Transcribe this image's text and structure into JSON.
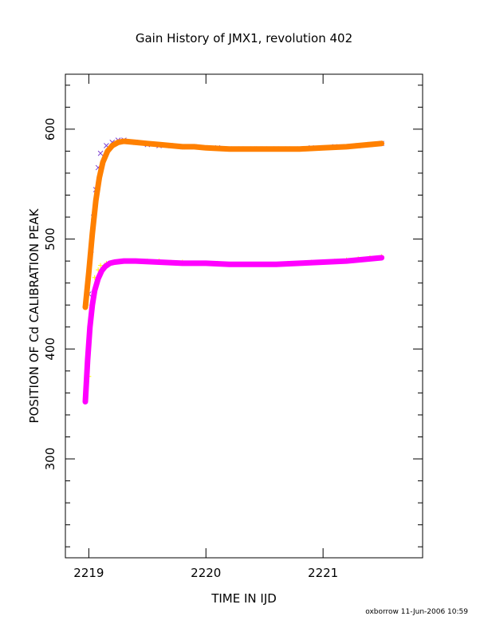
{
  "chart_data": {
    "type": "scatter",
    "title": "Gain History of JMX1, revolution 402",
    "xlabel": "TIME IN IJD",
    "ylabel": "POSITION OF Cd CALIBRATION PEAK",
    "xlim": [
      2218.8,
      2221.85
    ],
    "ylim": [
      210,
      650
    ],
    "x_ticks": [
      2219,
      2220,
      2221
    ],
    "y_ticks": [
      300,
      400,
      500,
      600
    ],
    "grid": false,
    "series": [
      {
        "name": "",
        "kind": "scatter",
        "marker": "x",
        "color": "#7b3fd0",
        "x": [
          2219.0,
          2219.02,
          2219.04,
          2219.06,
          2219.08,
          2219.1,
          2219.15,
          2219.2,
          2219.25,
          2219.3,
          2219.4,
          2219.5,
          2219.6,
          2219.7,
          2219.8,
          2219.9,
          2220.0,
          2220.1,
          2220.2,
          2220.3,
          2220.4,
          2220.45,
          2220.5,
          2220.6,
          2220.7,
          2220.8,
          2220.9,
          2221.0,
          2221.1,
          2221.2,
          2221.3,
          2221.4,
          2221.5
        ],
        "y": [
          450,
          490,
          520,
          545,
          565,
          578,
          585,
          588,
          590,
          590,
          588,
          586,
          585,
          585,
          584,
          584,
          583,
          583,
          582,
          582,
          582,
          582,
          582,
          582,
          582,
          582,
          583,
          583,
          584,
          584,
          585,
          586,
          587
        ]
      },
      {
        "name": "",
        "kind": "line",
        "marker": "+",
        "color": "#ff8000",
        "x": [
          2218.97,
          2219.0,
          2219.03,
          2219.06,
          2219.09,
          2219.12,
          2219.16,
          2219.2,
          2219.25,
          2219.3,
          2219.4,
          2219.5,
          2219.6,
          2219.7,
          2219.8,
          2219.9,
          2220.0,
          2220.2,
          2220.4,
          2220.6,
          2220.8,
          2221.0,
          2221.2,
          2221.4,
          2221.5
        ],
        "y": [
          438,
          470,
          505,
          535,
          556,
          570,
          580,
          585,
          588,
          589,
          588,
          587,
          586,
          585,
          584,
          584,
          583,
          582,
          582,
          582,
          582,
          583,
          584,
          586,
          587
        ]
      },
      {
        "name": "",
        "kind": "scatter",
        "marker": "+",
        "color": "#ffff00",
        "x": [
          2219.0,
          2219.02,
          2219.05,
          2219.08,
          2219.1,
          2219.15,
          2219.2,
          2219.3,
          2219.4,
          2219.5,
          2219.6,
          2219.7,
          2219.8,
          2219.9,
          2220.0,
          2220.1,
          2220.2,
          2220.3,
          2220.4,
          2220.5,
          2220.6,
          2220.7,
          2220.8,
          2220.9,
          2221.0,
          2221.1,
          2221.2,
          2221.3,
          2221.4,
          2221.5
        ],
        "y": [
          375,
          440,
          465,
          472,
          476,
          478,
          479,
          480,
          480,
          480,
          480,
          479,
          479,
          478,
          478,
          478,
          477,
          477,
          477,
          477,
          477,
          478,
          478,
          479,
          479,
          480,
          481,
          482,
          483,
          484
        ]
      },
      {
        "name": "",
        "kind": "line",
        "marker": "+",
        "color": "#ff00ff",
        "x": [
          2218.97,
          2218.99,
          2219.01,
          2219.03,
          2219.05,
          2219.08,
          2219.11,
          2219.14,
          2219.18,
          2219.22,
          2219.3,
          2219.4,
          2219.6,
          2219.8,
          2220.0,
          2220.2,
          2220.4,
          2220.6,
          2220.8,
          2221.0,
          2221.2,
          2221.4,
          2221.5
        ],
        "y": [
          352,
          390,
          420,
          440,
          453,
          464,
          471,
          475,
          478,
          479,
          480,
          480,
          479,
          478,
          478,
          477,
          477,
          477,
          478,
          479,
          480,
          482,
          483
        ]
      }
    ]
  },
  "footer_text": "oxborrow 11-Jun-2006 10:59"
}
